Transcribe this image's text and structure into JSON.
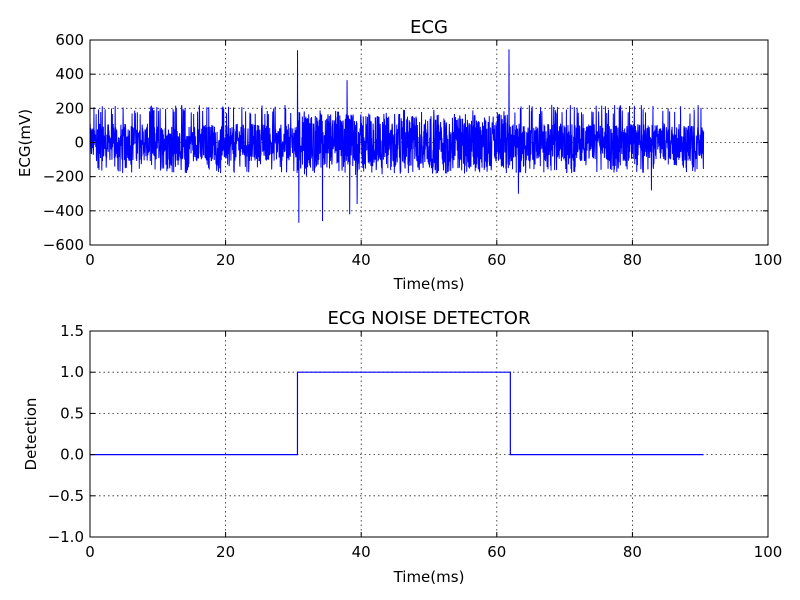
{
  "chart_data": [
    {
      "type": "line",
      "title": "ECG",
      "xlabel": "Time(ms)",
      "ylabel": "ECG(mV)",
      "xlim": [
        0,
        100
      ],
      "ylim": [
        -600,
        600
      ],
      "xticks": [
        0,
        20,
        40,
        60,
        80,
        100
      ],
      "yticks": [
        -600,
        -400,
        -200,
        0,
        200,
        400,
        600
      ],
      "ytick_labels": [
        "−600",
        "−400",
        "−200",
        "0",
        "200",
        "400",
        "600"
      ],
      "grid": true,
      "color": "#0000ff",
      "series": [
        {
          "x_range": [
            0,
            90.5
          ],
          "baseline_amplitude": [
            -180,
            220
          ],
          "noisy_segment": [
            30.5,
            62
          ],
          "peaks": [
            {
              "x": 30.6,
              "y": 540
            },
            {
              "x": 30.8,
              "y": -470
            },
            {
              "x": 34.3,
              "y": -460
            },
            {
              "x": 37.9,
              "y": 365
            },
            {
              "x": 38.3,
              "y": -420
            },
            {
              "x": 39.4,
              "y": -360
            },
            {
              "x": 61.8,
              "y": 545
            },
            {
              "x": 63.2,
              "y": -300
            },
            {
              "x": 82.8,
              "y": -280
            }
          ]
        }
      ]
    },
    {
      "type": "line",
      "title": "ECG NOISE DETECTOR",
      "xlabel": "Time(ms)",
      "ylabel": "Detection",
      "xlim": [
        0,
        100
      ],
      "ylim": [
        -1.0,
        1.5
      ],
      "xticks": [
        0,
        20,
        40,
        60,
        80,
        100
      ],
      "yticks": [
        -1.0,
        -0.5,
        0.0,
        0.5,
        1.0,
        1.5
      ],
      "ytick_labels": [
        "−1.0",
        "−0.5",
        "0.0",
        "0.5",
        "1.0",
        "1.5"
      ],
      "grid": true,
      "color": "#0000ff",
      "series": [
        {
          "x": [
            0,
            30.6,
            30.6,
            62.0,
            62.0,
            90.5
          ],
          "y": [
            0,
            0,
            1,
            1,
            0,
            0
          ]
        }
      ]
    }
  ]
}
